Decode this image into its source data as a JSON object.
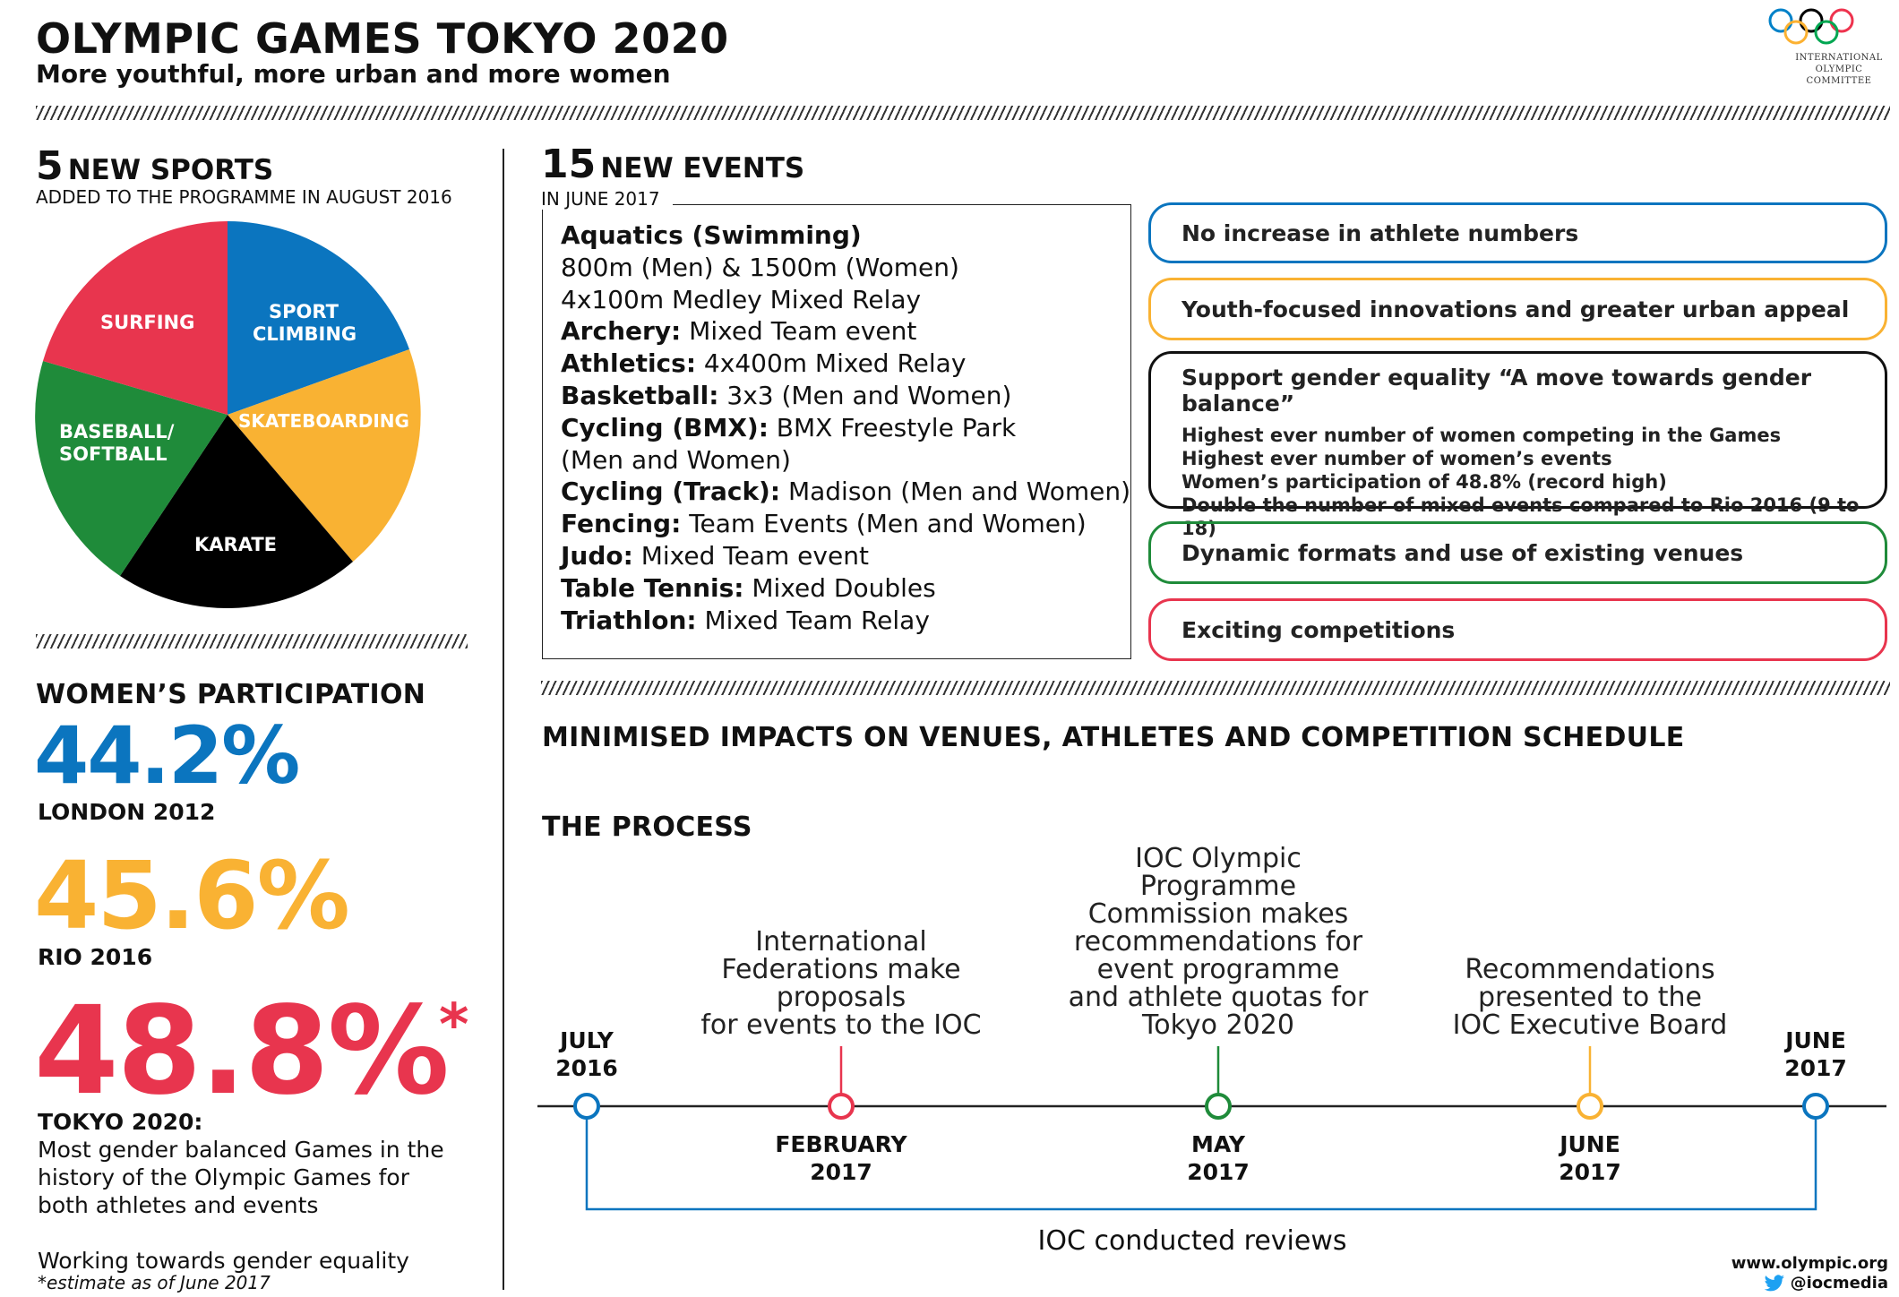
{
  "header": {
    "title": "OLYMPIC GAMES TOKYO 2020",
    "subtitle": "More youthful, more urban and more women",
    "ioc_text": [
      "INTERNATIONAL",
      "OLYMPIC",
      "COMMITTEE"
    ],
    "ring_colors": [
      "#0081c8",
      "#fcb131",
      "#000000",
      "#00a651",
      "#ee334e"
    ]
  },
  "new_sports": {
    "number": "5",
    "label": "NEW SPORTS",
    "sub": "ADDED TO THE PROGRAMME IN AUGUST 2016",
    "slices": [
      {
        "name": "SPORT CLIMBING",
        "color": "#0b75bf"
      },
      {
        "name": "SKATEBOARDING",
        "color": "#f9b233"
      },
      {
        "name": "KARATE",
        "color": "#000000"
      },
      {
        "name": "BASEBALL/ SOFTBALL",
        "color": "#1f8b3a"
      },
      {
        "name": "SURFING",
        "color": "#e8354e"
      }
    ]
  },
  "new_events": {
    "number": "15",
    "label": "NEW EVENTS",
    "sub": "IN JUNE 2017",
    "lines": [
      {
        "b": "Aquatics (Swimming)",
        "t": ""
      },
      {
        "b": "",
        "t": "800m (Men) & 1500m (Women)"
      },
      {
        "b": "",
        "t": "4x100m Medley Mixed Relay"
      },
      {
        "b": "Archery:",
        "t": " Mixed Team event"
      },
      {
        "b": "Athletics:",
        "t": " 4x400m Mixed Relay"
      },
      {
        "b": "Basketball:",
        "t": " 3x3 (Men and Women)"
      },
      {
        "b": "Cycling (BMX):",
        "t": " BMX Freestyle Park"
      },
      {
        "b": "",
        "t": "(Men and Women)"
      },
      {
        "b": "Cycling (Track):",
        "t": " Madison (Men and Women)"
      },
      {
        "b": "Fencing:",
        "t": " Team Events (Men and Women)"
      },
      {
        "b": "Judo:",
        "t": " Mixed Team event"
      },
      {
        "b": "Table Tennis:",
        "t": " Mixed Doubles"
      },
      {
        "b": "Triathlon:",
        "t": " Mixed Team Relay"
      }
    ]
  },
  "principles": {
    "no_increase": "No increase in athlete numbers",
    "youth": "Youth-focused innovations and greater urban appeal",
    "gender_head": "Support gender equality “A move towards gender balance”",
    "gender_lines": [
      "Highest ever number of women competing in the Games",
      "Highest ever number of women’s events",
      "Women’s participation of 48.8% (record high)",
      "Double the number of mixed events compared to Rio 2016 (9 to 18)"
    ],
    "dynamic": "Dynamic formats  and use of existing venues",
    "exciting": "Exciting competitions",
    "colors": {
      "blue": "#0b75bf",
      "yellow": "#f9b233",
      "black": "#111111",
      "green": "#1f8b3a",
      "red": "#e8354e"
    }
  },
  "womens": {
    "heading": "WOMEN’S PARTICIPATION",
    "london_pct": "44.2%",
    "london_label": "LONDON 2012",
    "rio_pct": "45.6%",
    "rio_label": "RIO 2016",
    "tokyo_pct": "48.8%",
    "asterisk": "*",
    "tokyo_label": "TOKYO 2020:",
    "tokyo_text": "Most gender balanced Games in the history of the Olympic Games for both athletes and events",
    "working": "Working towards gender equality",
    "estimate": "*estimate as of June 2017"
  },
  "impacts_heading": "MINIMISED IMPACTS ON VENUES, ATHLETES AND COMPETITION SCHEDULE",
  "process": {
    "heading": "THE PROCESS",
    "start_date": "JULY\n2016",
    "end_date": "JUNE\n2017",
    "feb_text": "International\nFederations make\nproposals\nfor events to the IOC",
    "feb_date": "FEBRUARY\n2017",
    "may_text": "IOC Olympic\nProgramme\nCommission makes\nrecommendations for\nevent programme\nand athlete quotas for\nTokyo 2020",
    "may_date": "MAY\n2017",
    "june_text": "Recommendations\npresented to the\nIOC Executive Board",
    "june_date": "JUNE\n2017",
    "reviews": "IOC conducted reviews"
  },
  "footer": {
    "website": "www.olympic.org",
    "twitter": "@iocmedia"
  }
}
